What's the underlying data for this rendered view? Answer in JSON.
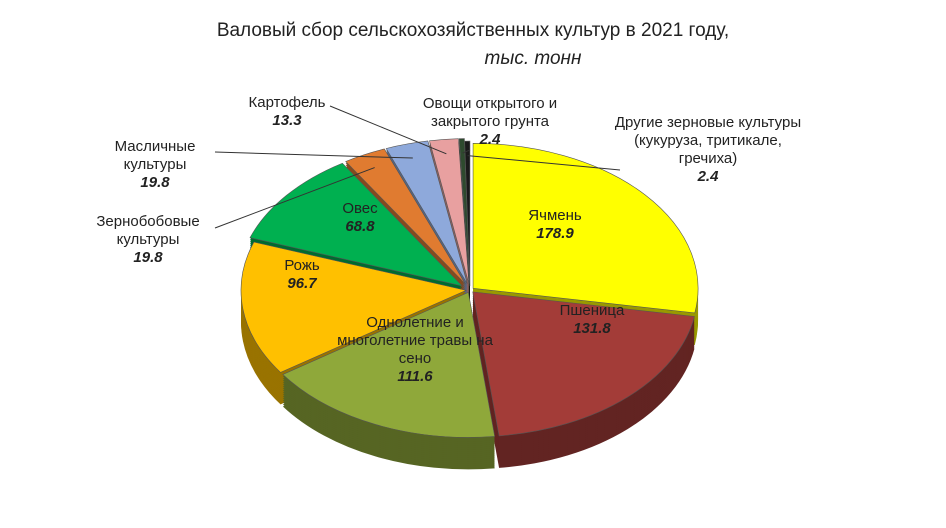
{
  "chart_data": {
    "type": "pie",
    "title": "Валовый сбор сельскохозяйственных культур в 2021 году,",
    "subtitle": "тыс. тонн",
    "categories": [
      "Ячмень",
      "Пшеница",
      "Однолетние и многолетние травы на сено",
      "Рожь",
      "Овес",
      "Зернобобовые культуры",
      "Масличные культуры",
      "Картофель",
      "Овощи открытого и закрытого грунта",
      "Другие зерновые культуры (кукуруза, тритикале, гречиха)"
    ],
    "values": [
      178.9,
      131.8,
      111.6,
      96.7,
      68.8,
      19.8,
      19.8,
      13.3,
      2.4,
      2.4
    ],
    "colors": [
      "#ffff00",
      "#a33c38",
      "#8fa83a",
      "#ffc000",
      "#00b050",
      "#e07b30",
      "#8ea9db",
      "#e8a0a0",
      "#2e4a2e",
      "#1a1a1a"
    ]
  }
}
